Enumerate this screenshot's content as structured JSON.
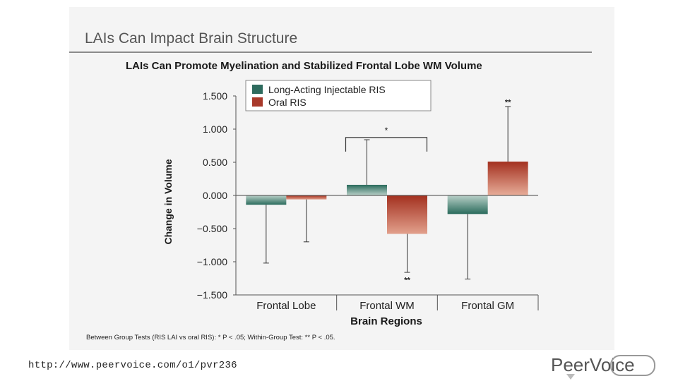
{
  "slide_title": "LAIs Can Impact Brain Structure",
  "chart_title": "LAIs Can Promote Myelination and Stabilized Frontal Lobe WM Volume",
  "footnote": "Between Group Tests (RIS LAI vs oral RIS): * P < .05; Within-Group Test: ** P < .05.",
  "url": "http://www.peervoice.com/o1/pvr236",
  "logo": {
    "part1": "Peer",
    "part2": "Voice"
  },
  "colors": {
    "series1": "#2e6b5e",
    "series2": "#a8392a",
    "accent": "#555555"
  },
  "chart_data": {
    "type": "bar",
    "categories": [
      "Frontal Lobe",
      "Frontal WM",
      "Frontal GM"
    ],
    "xlabel": "Brain Regions",
    "ylabel": "Change in Volume",
    "ylim": [
      -1.5,
      1.5
    ],
    "yticks": [
      "1.500",
      "1.000",
      "0.500",
      "0.000",
      "−0.500",
      "−1.000",
      "−1.500"
    ],
    "ytick_values": [
      1.5,
      1.0,
      0.5,
      0.0,
      -0.5,
      -1.0,
      -1.5
    ],
    "series": [
      {
        "name": "Long-Acting Injectable RIS",
        "values": [
          -0.14,
          0.16,
          -0.28
        ],
        "error_tips": [
          -1.02,
          0.84,
          -1.26
        ]
      },
      {
        "name": "Oral RIS",
        "values": [
          -0.06,
          -0.58,
          0.51
        ],
        "error_tips": [
          -0.7,
          -1.16,
          1.34
        ]
      }
    ],
    "annotations": [
      {
        "text": "*",
        "category": 1,
        "level": 0.98
      },
      {
        "text": "**",
        "category": 1,
        "series": 1,
        "level": -1.26
      },
      {
        "text": "**",
        "category": 2,
        "series": 1,
        "level": 1.42
      }
    ]
  }
}
